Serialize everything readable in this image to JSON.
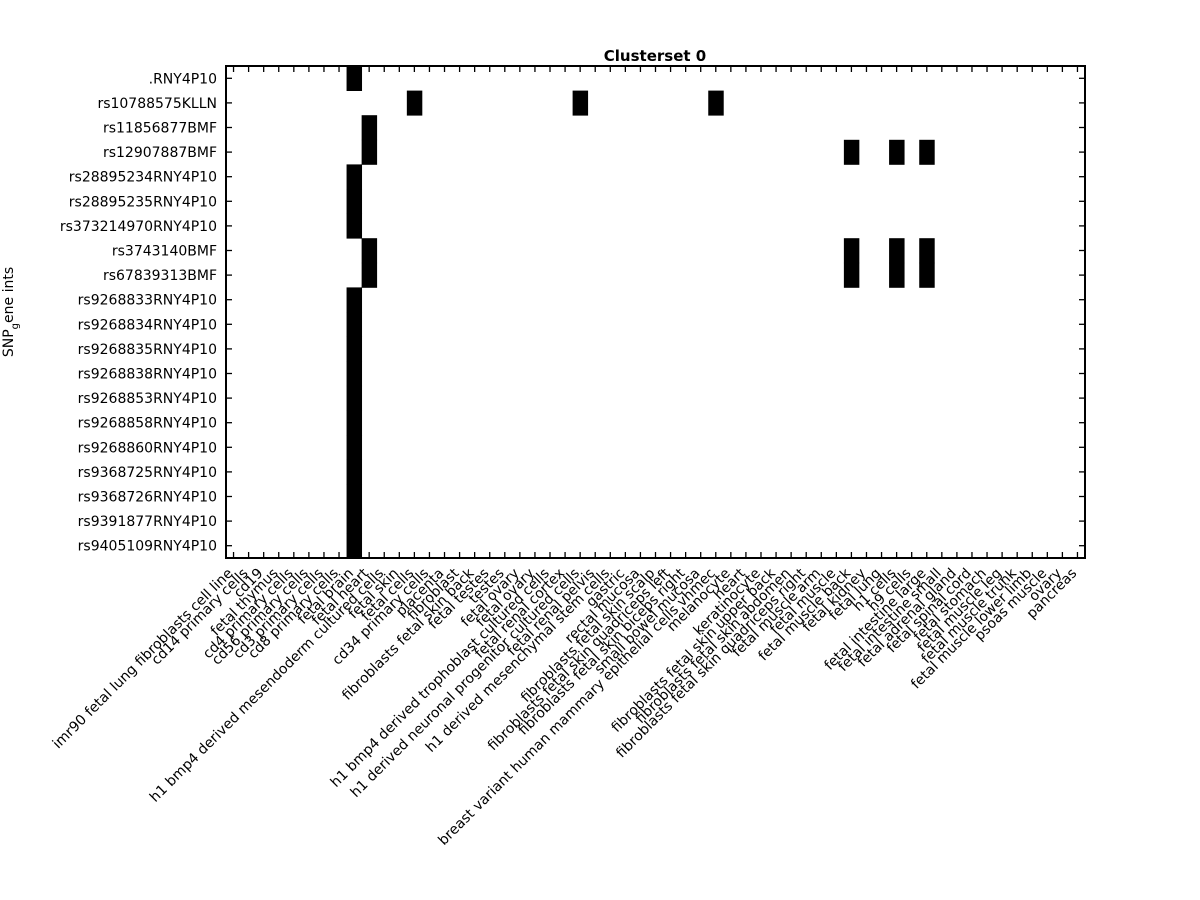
{
  "chart_data": {
    "type": "heatmap",
    "title": "Clusterset 0",
    "ylabel_main": "SNP",
    "ylabel_sub": "g",
    "ylabel_rest": "ene ints",
    "rows": [
      ".RNY4P10",
      "rs10788575KLLN",
      "rs11856877BMF",
      "rs12907887BMF",
      "rs28895234RNY4P10",
      "rs28895235RNY4P10",
      "rs373214970RNY4P10",
      "rs3743140BMF",
      "rs67839313BMF",
      "rs9268833RNY4P10",
      "rs9268834RNY4P10",
      "rs9268835RNY4P10",
      "rs9268838RNY4P10",
      "rs9268853RNY4P10",
      "rs9268858RNY4P10",
      "rs9268860RNY4P10",
      "rs9368725RNY4P10",
      "rs9368726RNY4P10",
      "rs9391877RNY4P10",
      "rs9405109RNY4P10"
    ],
    "columns": [
      "imr90 fetal lung fibroblasts cell line",
      "cd14 primary cells",
      "cd19",
      "fetal thymus",
      "cd4 primary cells",
      "cd56 primary cells",
      "cd3 primary cells",
      "cd8 primary cells",
      "fetal brain",
      "fetal heart",
      "h1 bmp4 derived mesendoderm cultured cells",
      "fetal skin",
      "fetal cells",
      "cd34 primary cells",
      "placenta",
      "fibroblast",
      "fibroblasts fetal skin back",
      "fetal testes",
      "testes",
      "fetal ovary",
      "fetal ovary",
      "h1 bmp4 derived trophoblast cultured cells",
      "fetal renal cortex",
      "h1 derived neuronal progenitor cultured cells",
      "fetal renal pelvis",
      "h1 derived mesenchymal stem cells",
      "gastric",
      "rectal mucosa",
      "fibroblasts fetal skin scalp",
      "fibroblasts fetal skin quadriceps left",
      "fibroblasts fetal skin biceps right",
      "small bowel mucosa",
      "breast variant human mammary epithelial cells vhmec",
      "melanocyte",
      "heart",
      "keratinocyte",
      "fibroblasts fetal skin upper back",
      "fibroblasts fetal skin abdomen",
      "fibroblasts fetal skin quadriceps right",
      "fetal muscle arm",
      "fetal muscle",
      "fetal muscle back",
      "fetal kidney",
      "fetal lung",
      "h1 cells",
      "h9 cells",
      "fetal intestine large",
      "fetal intestine small",
      "fetal adrenal gland",
      "fetal spinal cord",
      "fetal stomach",
      "fetal muscle leg",
      "fetal muscle trunk",
      "fetal muscle lower limb",
      "psoas muscle",
      "ovary",
      "pancreas"
    ],
    "active_cells": [
      [
        0,
        8
      ],
      [
        1,
        12
      ],
      [
        1,
        23
      ],
      [
        1,
        32
      ],
      [
        2,
        9
      ],
      [
        3,
        9
      ],
      [
        3,
        41
      ],
      [
        3,
        44
      ],
      [
        3,
        46
      ],
      [
        4,
        8
      ],
      [
        5,
        8
      ],
      [
        6,
        8
      ],
      [
        7,
        9
      ],
      [
        7,
        41
      ],
      [
        7,
        44
      ],
      [
        7,
        46
      ],
      [
        8,
        9
      ],
      [
        8,
        41
      ],
      [
        8,
        44
      ],
      [
        8,
        46
      ],
      [
        9,
        8
      ],
      [
        10,
        8
      ],
      [
        11,
        8
      ],
      [
        12,
        8
      ],
      [
        13,
        8
      ],
      [
        14,
        8
      ],
      [
        15,
        8
      ],
      [
        16,
        8
      ],
      [
        17,
        8
      ],
      [
        18,
        8
      ],
      [
        19,
        8
      ]
    ],
    "values": "binary (1 = black cell, 0 = white)",
    "colors": {
      "on": "#000000",
      "off": "#ffffff",
      "axes": "#000000"
    }
  }
}
